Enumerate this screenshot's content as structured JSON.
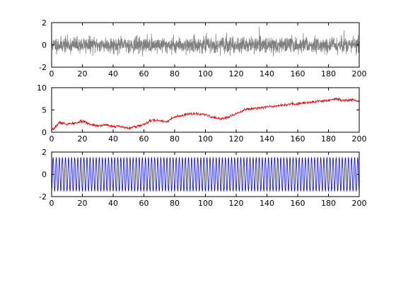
{
  "figure": {
    "background": "#ffffff"
  },
  "chart_data": [
    {
      "type": "line",
      "description_series": "noise",
      "color": "#808080",
      "xlim": [
        0,
        200
      ],
      "ylim": [
        -2,
        2
      ],
      "xticks": [
        0,
        20,
        40,
        60,
        80,
        100,
        120,
        140,
        160,
        180,
        200
      ],
      "yticks": [
        -2,
        0,
        2
      ],
      "xlabel": "",
      "ylabel": "",
      "title": "",
      "generator": {
        "kind": "noise",
        "n": 2000,
        "mean": 0,
        "std": 0.35,
        "seed": 11
      }
    },
    {
      "type": "line",
      "color": "#e00000",
      "xlim": [
        0,
        200
      ],
      "ylim": [
        0,
        10
      ],
      "xticks": [
        0,
        20,
        40,
        60,
        80,
        100,
        120,
        140,
        160,
        180,
        200
      ],
      "yticks": [
        0,
        5,
        10
      ],
      "xlabel": "",
      "ylabel": "",
      "title": "",
      "x": [
        0,
        2,
        5,
        10,
        15,
        20,
        25,
        30,
        35,
        40,
        45,
        50,
        55,
        60,
        65,
        70,
        75,
        80,
        85,
        90,
        95,
        100,
        105,
        110,
        115,
        120,
        125,
        130,
        140,
        150,
        155,
        160,
        170,
        180,
        185,
        190,
        195,
        200
      ],
      "y": [
        0.3,
        1.0,
        2.2,
        1.8,
        2.0,
        2.5,
        1.8,
        1.5,
        1.6,
        1.4,
        1.2,
        0.9,
        1.3,
        1.7,
        2.7,
        2.6,
        2.4,
        3.4,
        3.7,
        4.2,
        4.1,
        3.9,
        3.3,
        3.0,
        3.4,
        4.2,
        5.0,
        5.3,
        5.7,
        6.1,
        6.3,
        6.4,
        6.8,
        7.2,
        7.5,
        7.1,
        7.3,
        6.9
      ],
      "jitter": {
        "std": 0.15,
        "seed": 7,
        "n": 1000
      }
    },
    {
      "type": "line",
      "color": "#0000cc",
      "xlim": [
        0,
        200
      ],
      "ylim": [
        -2,
        2
      ],
      "xticks": [
        0,
        20,
        40,
        60,
        80,
        100,
        120,
        140,
        160,
        180,
        200
      ],
      "yticks": [
        -2,
        0,
        2
      ],
      "xlabel": "",
      "ylabel": "",
      "title": "",
      "generator": {
        "kind": "sine",
        "amplitude": 1.5,
        "cycles": 100,
        "n": 4000
      }
    }
  ]
}
